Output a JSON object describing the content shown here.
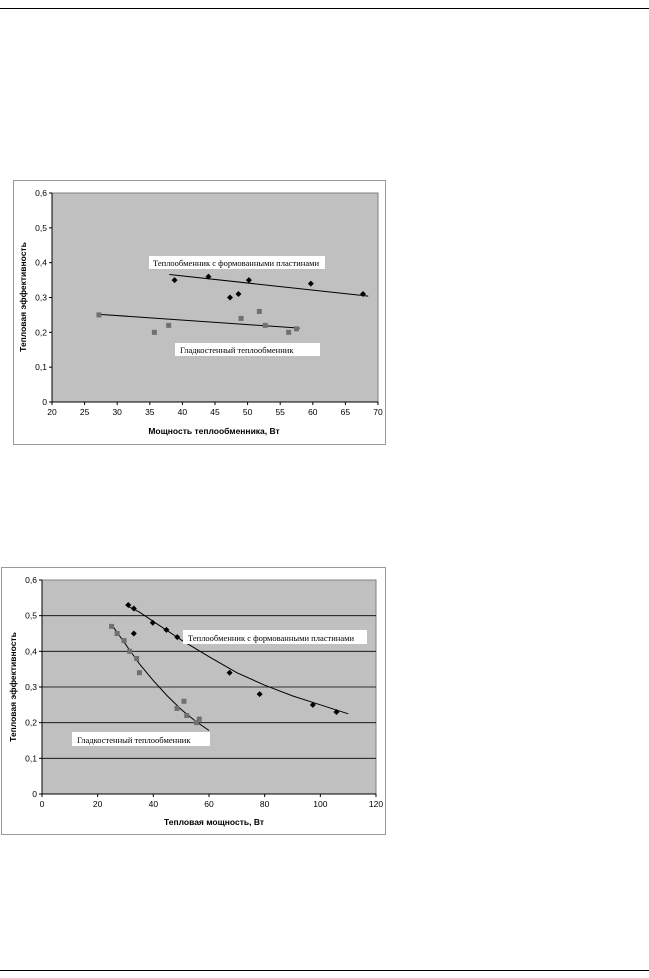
{
  "chart_data": [
    {
      "type": "scatter",
      "xlabel": "Мощность теплообменника, Вт",
      "ylabel": "Тепловая эффективность",
      "xlim": [
        20,
        70
      ],
      "ylim": [
        0,
        0.6
      ],
      "xticks": [
        "20",
        "25",
        "30",
        "35",
        "40",
        "45",
        "50",
        "55",
        "60",
        "65",
        "70"
      ],
      "yticks": [
        "0",
        "0,1",
        "0,2",
        "0,3",
        "0,4",
        "0,5",
        "0,6"
      ],
      "grid": false,
      "plot_background": "#c0c0c0",
      "series": [
        {
          "marker": "diamond",
          "color": "#000000",
          "points": [
            [
              38.8,
              0.35
            ],
            [
              44.0,
              0.36
            ],
            [
              47.3,
              0.3
            ],
            [
              48.6,
              0.31
            ],
            [
              50.2,
              0.35
            ],
            [
              59.7,
              0.34
            ],
            [
              67.7,
              0.31
            ]
          ],
          "trend": {
            "kind": "linear",
            "x": [
              38.0,
              68.5
            ],
            "y": [
              0.366,
              0.304
            ]
          }
        },
        {
          "marker": "square",
          "color": "#707070",
          "points": [
            [
              27.2,
              0.25
            ],
            [
              35.7,
              0.2
            ],
            [
              37.9,
              0.22
            ],
            [
              49.0,
              0.24
            ],
            [
              51.8,
              0.26
            ],
            [
              52.7,
              0.22
            ],
            [
              56.3,
              0.2
            ],
            [
              57.5,
              0.21
            ]
          ],
          "trend": {
            "kind": "linear",
            "x": [
              27.0,
              58.0
            ],
            "y": [
              0.252,
              0.212
            ]
          }
        }
      ],
      "annotations": [
        {
          "text": "Теплообменник с формованными пластинами"
        },
        {
          "text": "Гладкостенный теплообменник"
        }
      ]
    },
    {
      "type": "scatter",
      "xlabel": "Тепловая мощность, Вт",
      "ylabel": "Тепловая эффективность",
      "xlim": [
        0,
        120
      ],
      "ylim": [
        0,
        0.6
      ],
      "xticks": [
        "0",
        "20",
        "40",
        "60",
        "80",
        "100",
        "120"
      ],
      "yticks": [
        "0",
        "0,1",
        "0,2",
        "0,3",
        "0,4",
        "0,5",
        "0,6"
      ],
      "grid": true,
      "plot_background": "#c0c0c0",
      "series": [
        {
          "marker": "diamond",
          "color": "#000000",
          "points": [
            [
              31,
              0.53
            ],
            [
              33,
              0.52
            ],
            [
              33,
              0.45
            ],
            [
              39.8,
              0.48
            ],
            [
              44.7,
              0.46
            ],
            [
              48.6,
              0.44
            ],
            [
              67.4,
              0.34
            ],
            [
              78.2,
              0.28
            ],
            [
              97.3,
              0.25
            ],
            [
              105.8,
              0.23
            ]
          ],
          "trend": {
            "kind": "curve",
            "x": [
              30,
              35,
              40,
              50,
              60,
              70,
              80,
              90,
              100,
              110
            ],
            "y": [
              0.53,
              0.51,
              0.484,
              0.432,
              0.385,
              0.34,
              0.305,
              0.275,
              0.25,
              0.225
            ]
          }
        },
        {
          "marker": "square",
          "color": "#707070",
          "points": [
            [
              25,
              0.47
            ],
            [
              27,
              0.45
            ],
            [
              29.5,
              0.43
            ],
            [
              31.5,
              0.4
            ],
            [
              34,
              0.38
            ],
            [
              35,
              0.34
            ],
            [
              48.5,
              0.24
            ],
            [
              51,
              0.26
            ],
            [
              52,
              0.22
            ],
            [
              55.5,
              0.2
            ],
            [
              56.5,
              0.21
            ]
          ],
          "trend": {
            "kind": "curve",
            "x": [
              25,
              30,
              35,
              40,
              45,
              50,
              55,
              60
            ],
            "y": [
              0.475,
              0.42,
              0.365,
              0.318,
              0.275,
              0.237,
              0.205,
              0.178
            ]
          }
        }
      ],
      "annotations": [
        {
          "text": "Теплообменник с формованными пластинами"
        },
        {
          "text": "Гладкостенный теплообменник"
        }
      ]
    }
  ]
}
